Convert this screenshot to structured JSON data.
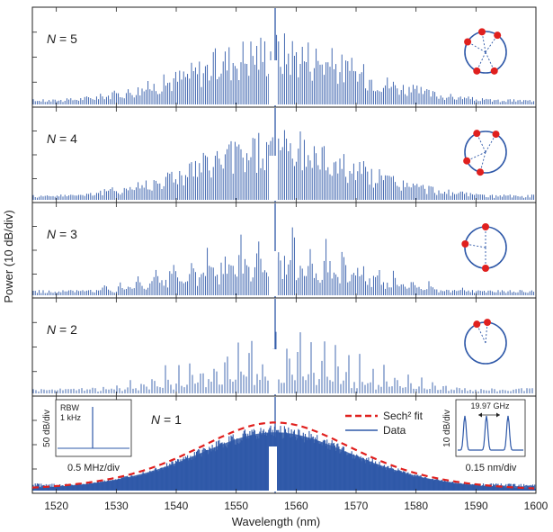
{
  "chart_data": {
    "type": "line",
    "ylabel": "Power (10 dB/div)",
    "xlabel": "Wavelength (nm)",
    "xlim": [
      1516,
      1600
    ],
    "xticks": [
      1520,
      1530,
      1540,
      1550,
      1560,
      1570,
      1580,
      1590,
      1600
    ],
    "pump_nm": 1556.5,
    "colors": {
      "data": "#2e58a8",
      "fit": "#e0201e",
      "ring": "#2e58a8",
      "soliton": "#e0201e"
    },
    "panels": [
      {
        "label_var": "N",
        "label_val": "5",
        "soliton_angles_deg": [
          55,
          100,
          150,
          245,
          295
        ]
      },
      {
        "label_var": "N",
        "label_val": "4",
        "soliton_angles_deg": [
          60,
          115,
          205,
          255
        ]
      },
      {
        "label_var": "N",
        "label_val": "3",
        "soliton_angles_deg": [
          90,
          170,
          270
        ]
      },
      {
        "label_var": "N",
        "label_val": "2",
        "soliton_angles_deg": [
          85,
          115
        ]
      },
      {
        "label_var": "N",
        "label_val": "1",
        "legend": [
          {
            "name": "Sech² fit",
            "style": "dashed"
          },
          {
            "name": "Data",
            "style": "solid"
          }
        ]
      }
    ],
    "insets": {
      "rf": {
        "ylabel": "50 dB/div",
        "xlabel": "0.5 MHz/div",
        "note_line1": "RBW",
        "note_line2": "1 kHz"
      },
      "optical": {
        "ylabel": "10 dB/div",
        "xlabel": "0.15 nm/div",
        "spacing": "19.97 GHz"
      }
    }
  }
}
